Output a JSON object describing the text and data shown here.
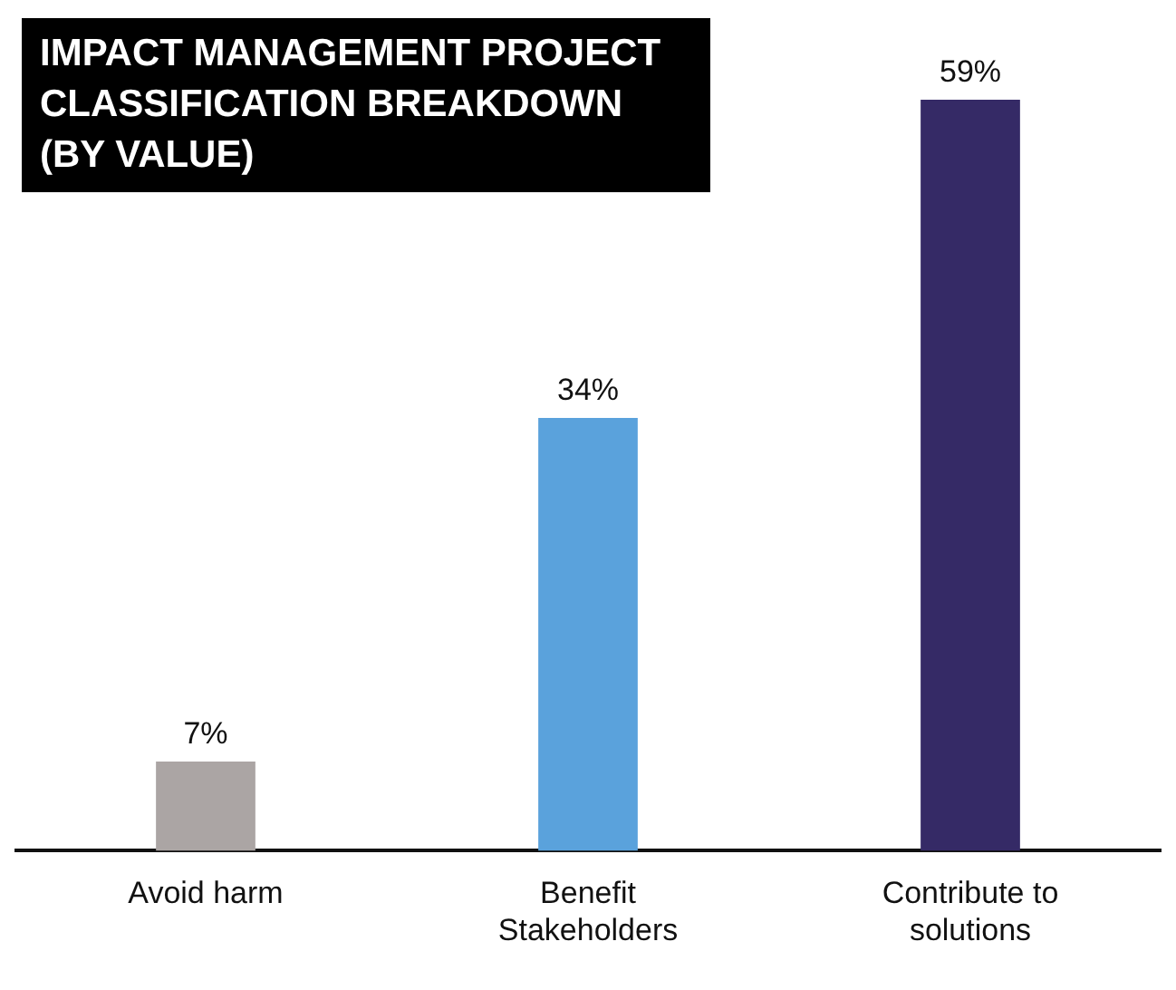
{
  "chart_data": {
    "type": "bar",
    "title": "IMPACT MANAGEMENT PROJECT CLASSIFICATION BREAKDOWN (BY VALUE)",
    "categories": [
      "Avoid harm",
      "Benefit Stakeholders",
      "Contribute to solutions"
    ],
    "values": [
      7,
      34,
      59
    ],
    "colors": [
      "#aba5a4",
      "#5aa2dc",
      "#352a66"
    ],
    "data_labels": true,
    "value_labels": [
      "7%",
      "34%",
      "59%"
    ],
    "grid": false,
    "legend": false
  }
}
